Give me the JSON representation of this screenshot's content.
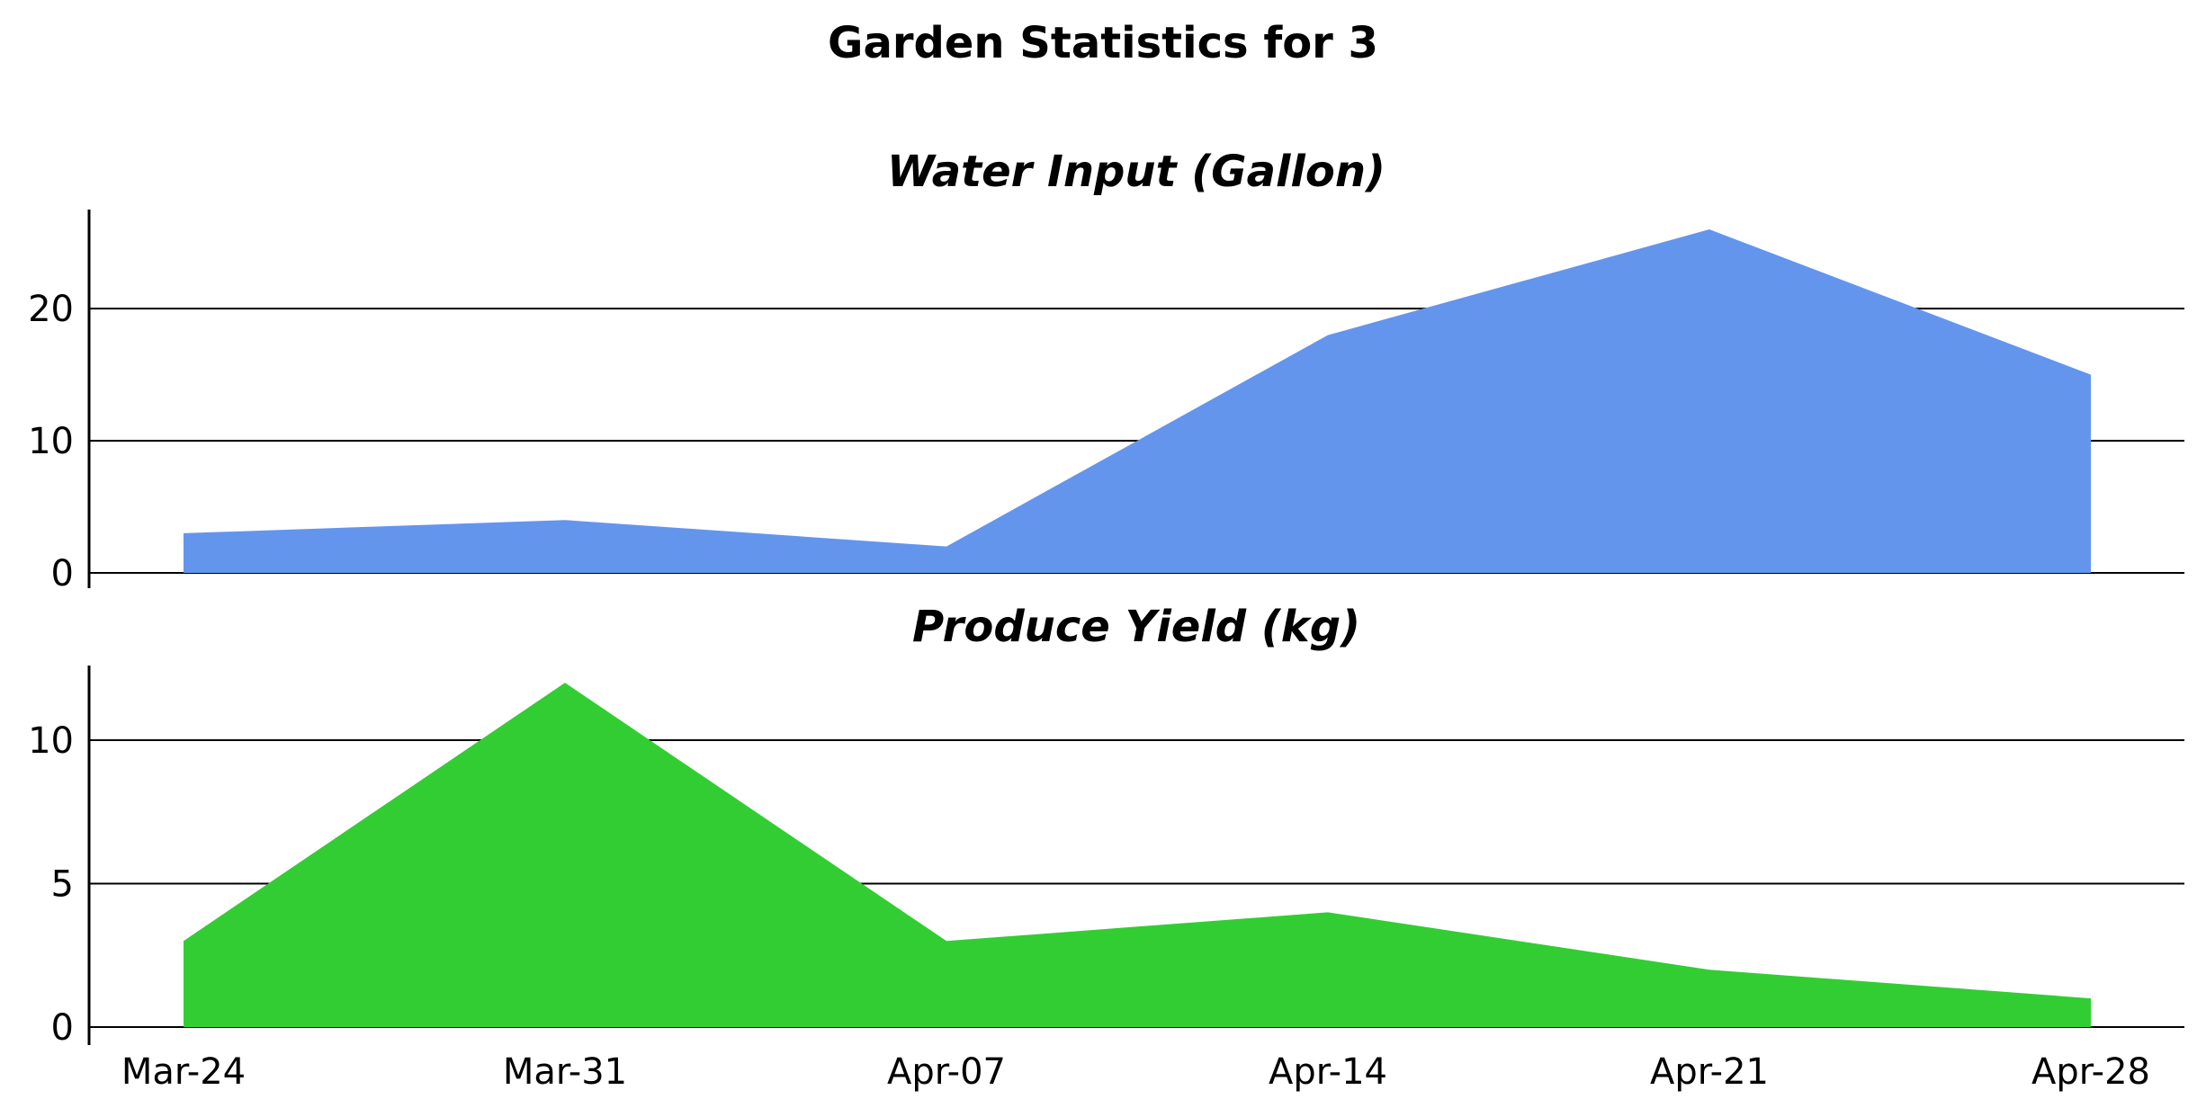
{
  "chart_data": {
    "title": "Garden Statistics for 3",
    "type": "area",
    "x": [
      "Mar-24",
      "Mar-31",
      "Apr-07",
      "Apr-14",
      "Apr-21",
      "Apr-28"
    ],
    "panels": [
      {
        "title": "Water Input (Gallon)",
        "color": "#6495ED",
        "values": [
          3,
          4,
          2,
          18,
          26,
          15
        ],
        "ylim": [
          0,
          27.5
        ],
        "yticks": [
          0,
          10,
          20
        ],
        "grid": true
      },
      {
        "title": "Produce Yield (kg)",
        "color": "#32CD32",
        "values": [
          3,
          12,
          3,
          4,
          2,
          1
        ],
        "ylim": [
          0,
          12.6
        ],
        "yticks": [
          0,
          5,
          10
        ],
        "grid": true
      }
    ]
  }
}
